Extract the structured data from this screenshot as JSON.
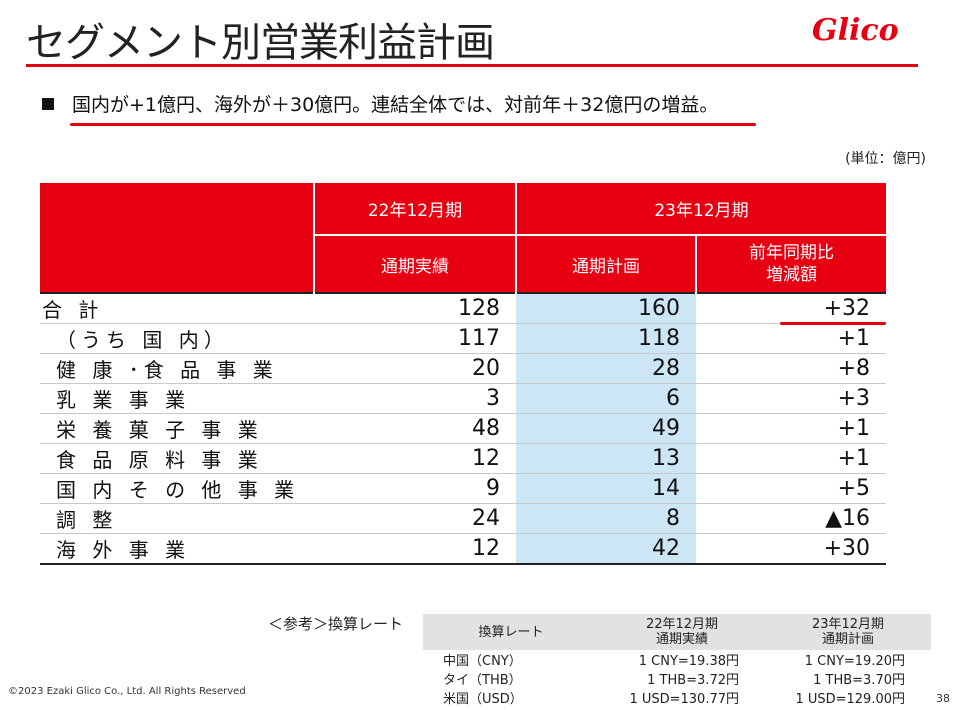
{
  "title": "セグメント別営業利益計画",
  "logo_text": "Glico",
  "colors": {
    "accent": "#e60012",
    "plan_bg": "#cde6f6",
    "ref_header_bg": "#e2e2e2"
  },
  "bullet": "国内が+1億円、海外が＋30億円。連結全体では、対前年＋32億円の増益。",
  "unit": "(単位：億円)",
  "table": {
    "header": {
      "fy22": "22年12月期",
      "fy23": "23年12月期",
      "actual": "通期実績",
      "plan": "通期計画",
      "yoy": "前年同期比\n増減額"
    },
    "rows": [
      {
        "label": "合 計",
        "actual": "128",
        "plan": "160",
        "yoy": "+32"
      },
      {
        "label": "（うち 国 内）",
        "actual": "117",
        "plan": "118",
        "yoy": "+1"
      },
      {
        "label": "健 康 ･食 品 事 業",
        "actual": "20",
        "plan": "28",
        "yoy": "+8"
      },
      {
        "label": "乳 業 事 業",
        "actual": "3",
        "plan": "6",
        "yoy": "+3"
      },
      {
        "label": "栄 養 菓 子 事 業",
        "actual": "48",
        "plan": "49",
        "yoy": "+1"
      },
      {
        "label": "食 品 原 料 事 業",
        "actual": "12",
        "plan": "13",
        "yoy": "+1"
      },
      {
        "label": "国 内 そ の 他 事 業",
        "actual": "9",
        "plan": "14",
        "yoy": "+5"
      },
      {
        "label": "調 整",
        "actual": "24",
        "plan": "8",
        "yoy": "▲16"
      },
      {
        "label": "海 外 事 業",
        "actual": "12",
        "plan": "42",
        "yoy": "+30"
      }
    ]
  },
  "reference": {
    "label": "＜参考＞換算レート",
    "header": {
      "rate": "換算レート",
      "fy22": "22年12月期\n通期実績",
      "fy23": "23年12月期\n通期計画"
    },
    "rows": [
      {
        "currency": "中国（CNY）",
        "fy22": "1 CNY=19.38円",
        "fy23": "1 CNY=19.20円"
      },
      {
        "currency": "タイ（THB）",
        "fy22": "1 THB=3.72円",
        "fy23": "1 THB=3.70円"
      },
      {
        "currency": "米国（USD）",
        "fy22": "1 USD=130.77円",
        "fy23": "1 USD=129.00円"
      }
    ]
  },
  "copyright": "©2023 Ezaki Glico Co., Ltd. All Rights Reserved",
  "page_number": "38"
}
